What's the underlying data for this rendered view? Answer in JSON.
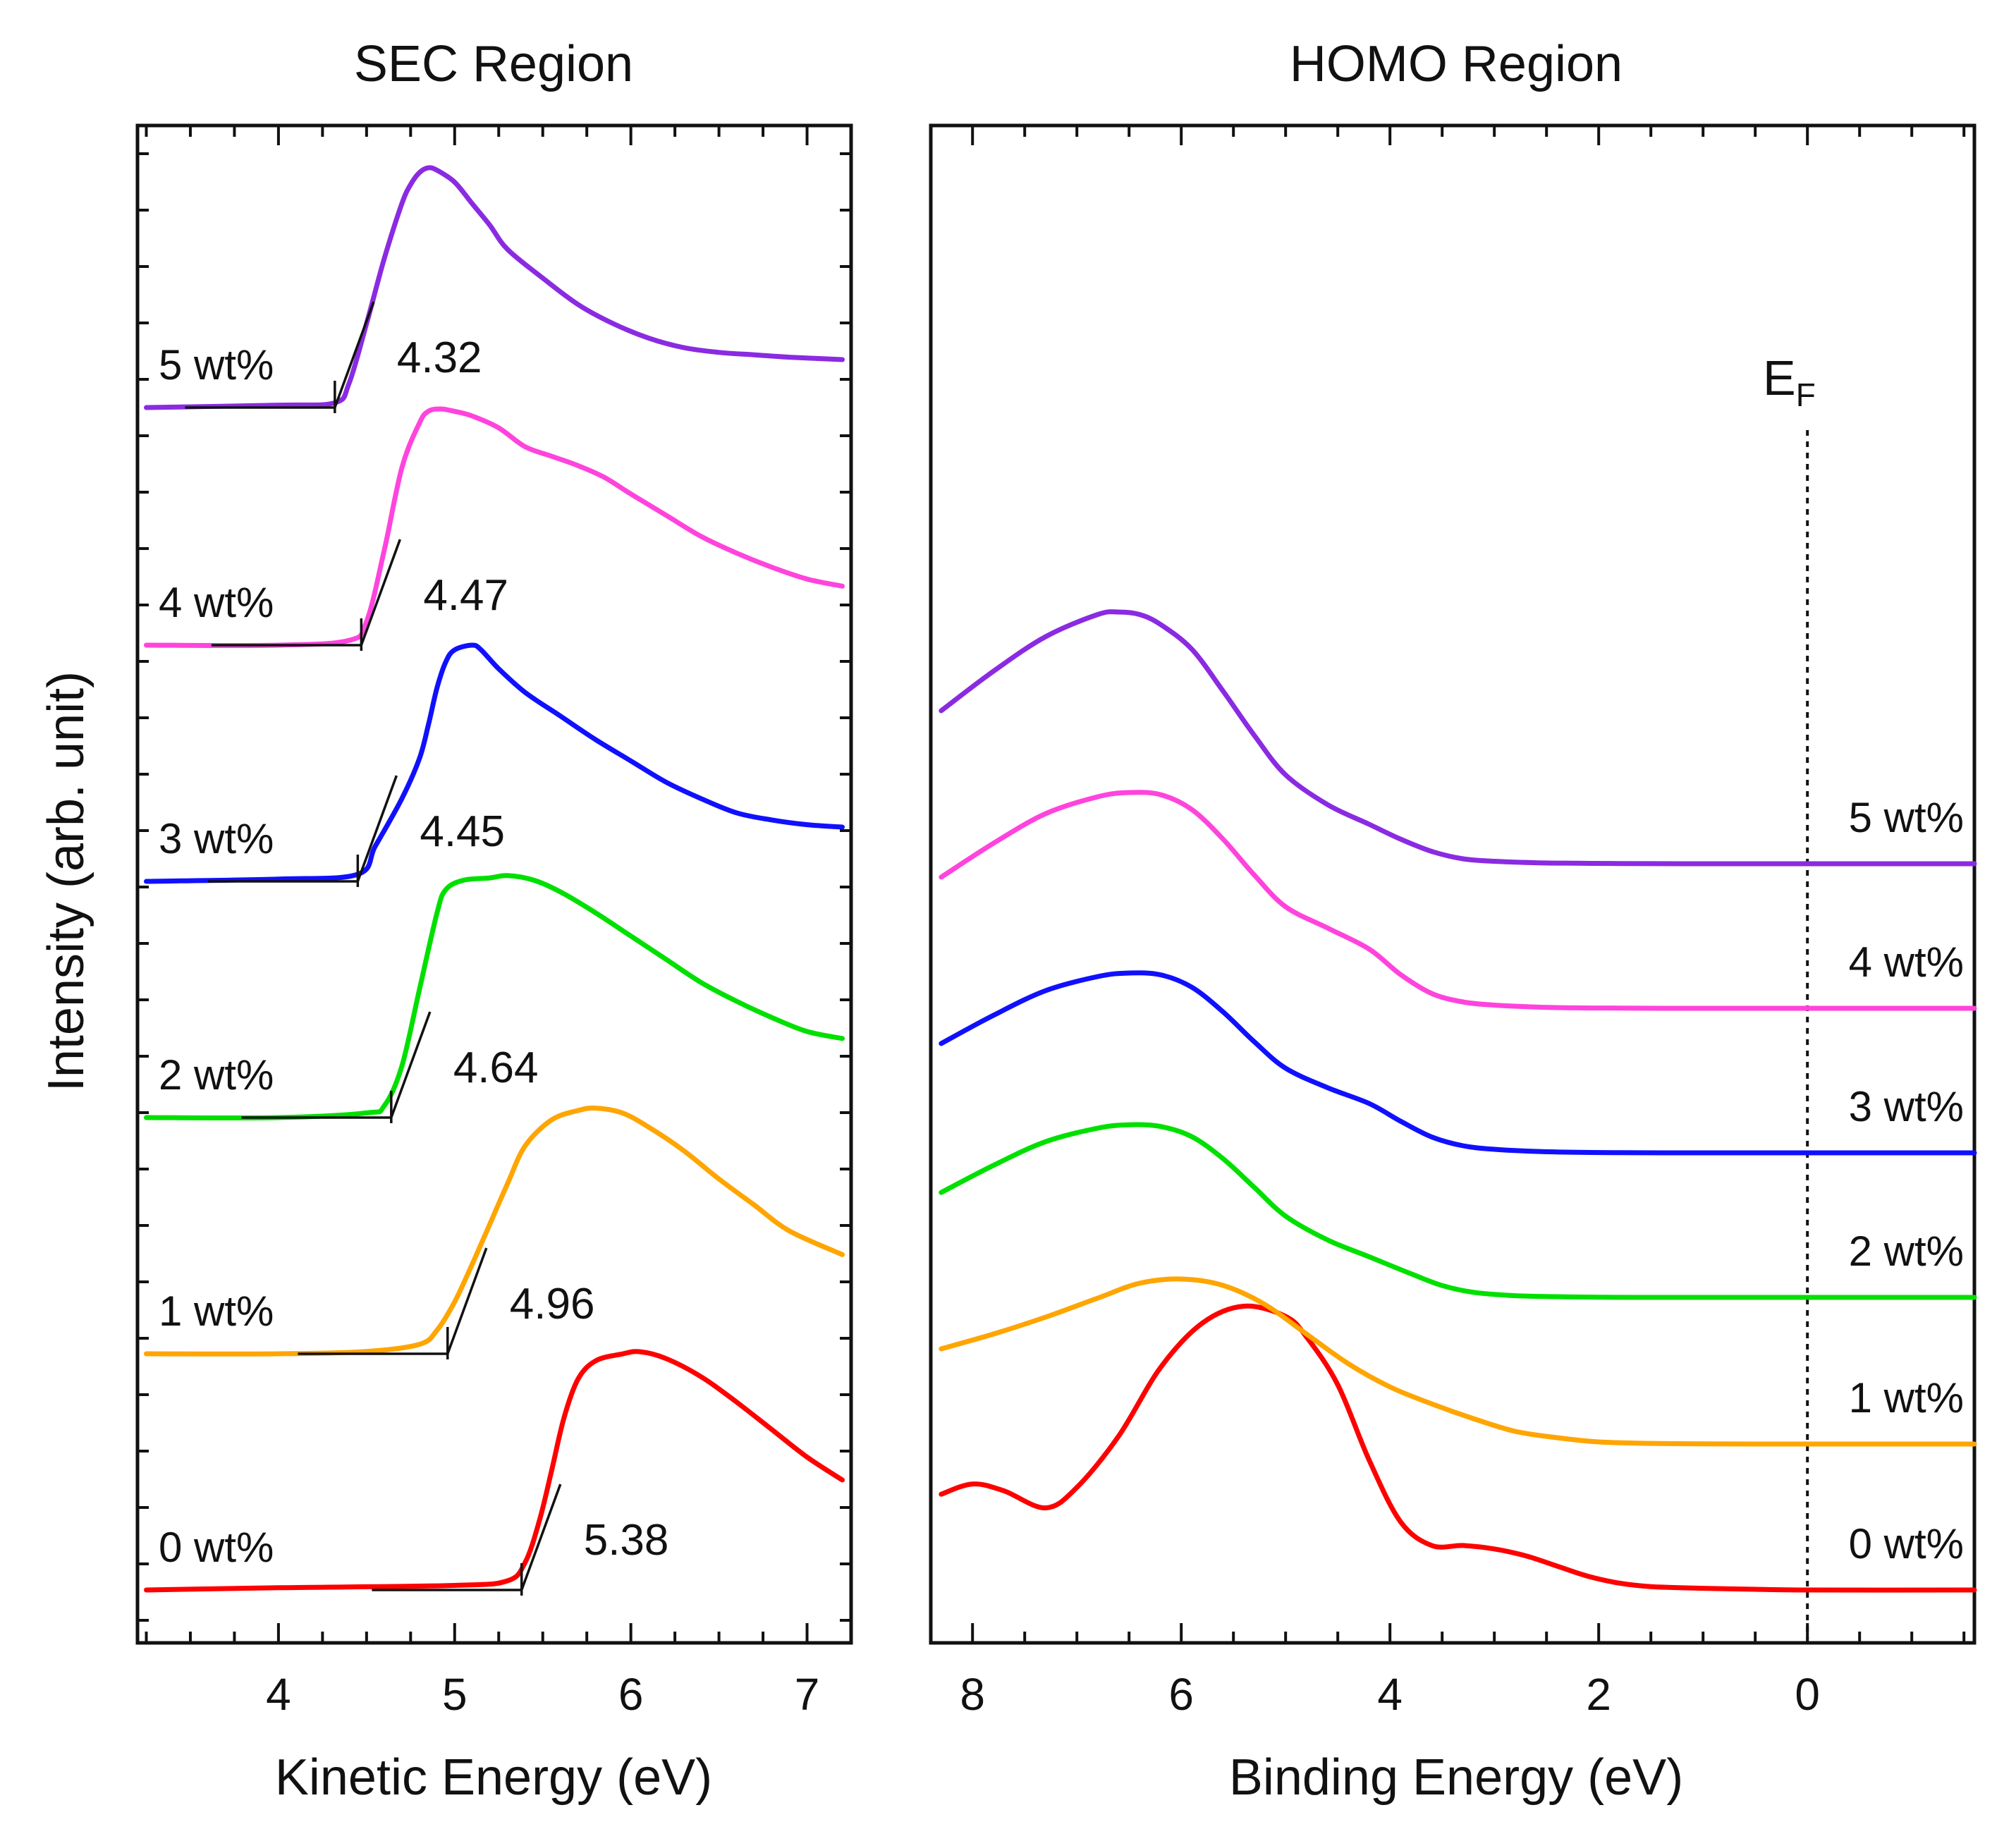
{
  "chart_data": [
    {
      "type": "line",
      "title": "SEC Region",
      "xlabel": "Kinetic Energy (eV)",
      "ylabel": "Intensity (arb. unit)",
      "xlim": [
        3.2,
        7.25
      ],
      "xticks": [
        "4",
        "5",
        "6",
        "7"
      ],
      "grid": false,
      "series": [
        {
          "name": "0 wt%",
          "color": "#ff0000",
          "onset": "5.38",
          "x": [
            3.25,
            4.0,
            5.0,
            5.3,
            5.4,
            5.48,
            5.55,
            5.62,
            5.7,
            5.8,
            5.95,
            6.05,
            6.2,
            6.4,
            6.6,
            6.8,
            7.0,
            7.2
          ],
          "y": [
            0.0,
            0.01,
            0.02,
            0.04,
            0.12,
            0.3,
            0.52,
            0.75,
            0.92,
            1.0,
            1.03,
            1.04,
            1.01,
            0.93,
            0.82,
            0.7,
            0.58,
            0.48
          ]
        },
        {
          "name": "1 wt%",
          "color": "#ffa500",
          "onset": "4.96",
          "x": [
            3.25,
            4.0,
            4.5,
            4.8,
            4.9,
            5.0,
            5.1,
            5.2,
            5.3,
            5.4,
            5.55,
            5.7,
            5.8,
            5.95,
            6.1,
            6.3,
            6.5,
            6.7,
            6.9,
            7.2
          ],
          "y": [
            0.0,
            0.0,
            0.01,
            0.04,
            0.1,
            0.22,
            0.38,
            0.55,
            0.72,
            0.88,
            0.99,
            1.03,
            1.04,
            1.02,
            0.96,
            0.86,
            0.74,
            0.63,
            0.52,
            0.42
          ]
        },
        {
          "name": "2 wt%",
          "color": "#00e000",
          "onset": "4.64",
          "x": [
            3.25,
            4.0,
            4.5,
            4.6,
            4.7,
            4.8,
            4.9,
            4.95,
            5.05,
            5.2,
            5.3,
            5.45,
            5.6,
            5.8,
            6.0,
            6.2,
            6.4,
            6.6,
            6.8,
            7.0,
            7.2
          ],
          "y": [
            0.0,
            0.0,
            0.02,
            0.05,
            0.22,
            0.55,
            0.88,
            0.98,
            1.02,
            1.03,
            1.04,
            1.02,
            0.97,
            0.88,
            0.78,
            0.68,
            0.58,
            0.5,
            0.43,
            0.37,
            0.34
          ]
        },
        {
          "name": "3 wt%",
          "color": "#1010ff",
          "onset": "4.45",
          "x": [
            3.25,
            4.0,
            4.45,
            4.55,
            4.7,
            4.8,
            4.85,
            4.9,
            4.95,
            5.0,
            5.1,
            5.15,
            5.25,
            5.4,
            5.6,
            5.8,
            6.0,
            6.2,
            6.4,
            6.6,
            6.8,
            7.0,
            7.2
          ],
          "y": [
            0.0,
            0.01,
            0.03,
            0.15,
            0.35,
            0.52,
            0.66,
            0.82,
            0.93,
            0.98,
            1.0,
            0.98,
            0.9,
            0.8,
            0.7,
            0.6,
            0.51,
            0.42,
            0.35,
            0.29,
            0.26,
            0.24,
            0.23
          ]
        },
        {
          "name": "4 wt%",
          "color": "#ff44dd",
          "onset": "4.47",
          "x": [
            3.25,
            4.0,
            4.4,
            4.5,
            4.6,
            4.7,
            4.8,
            4.85,
            4.92,
            5.0,
            5.1,
            5.25,
            5.4,
            5.55,
            5.7,
            5.85,
            6.0,
            6.2,
            6.4,
            6.6,
            6.8,
            7.0,
            7.2
          ],
          "y": [
            0.0,
            0.0,
            0.02,
            0.1,
            0.4,
            0.75,
            0.94,
            0.99,
            1.0,
            0.99,
            0.97,
            0.92,
            0.84,
            0.8,
            0.76,
            0.71,
            0.64,
            0.55,
            0.46,
            0.39,
            0.33,
            0.28,
            0.25
          ]
        },
        {
          "name": "5 wt%",
          "color": "#8a2be2",
          "onset": "4.32",
          "x": [
            3.25,
            4.0,
            4.32,
            4.4,
            4.5,
            4.6,
            4.7,
            4.75,
            4.8,
            4.85,
            4.9,
            5.0,
            5.1,
            5.2,
            5.3,
            5.5,
            5.7,
            5.9,
            6.1,
            6.3,
            6.5,
            6.7,
            6.9,
            7.2
          ],
          "y": [
            0.0,
            0.01,
            0.02,
            0.1,
            0.35,
            0.62,
            0.85,
            0.93,
            0.98,
            1.0,
            0.99,
            0.94,
            0.85,
            0.76,
            0.66,
            0.54,
            0.43,
            0.35,
            0.29,
            0.25,
            0.23,
            0.22,
            0.21,
            0.2
          ]
        }
      ]
    },
    {
      "type": "line",
      "title": "HOMO Region",
      "xlabel": "Binding Energy (eV)",
      "xlim": [
        8.4,
        -1.6
      ],
      "xticks": [
        "8",
        "6",
        "4",
        "2",
        "0"
      ],
      "annotation": "E",
      "annotation_sub": "F",
      "grid": false,
      "series": [
        {
          "name": "0 wt%",
          "color": "#ff0000",
          "x": [
            8.3,
            8.0,
            7.7,
            7.3,
            7.0,
            6.6,
            6.2,
            5.8,
            5.4,
            5.0,
            4.8,
            4.5,
            4.2,
            3.9,
            3.6,
            3.3,
            3.0,
            2.7,
            2.4,
            2.1,
            1.8,
            1.5,
            1.0,
            0.5,
            0.0,
            -1.6
          ],
          "y": [
            0.28,
            0.31,
            0.29,
            0.24,
            0.3,
            0.45,
            0.65,
            0.78,
            0.83,
            0.8,
            0.74,
            0.6,
            0.38,
            0.2,
            0.13,
            0.13,
            0.12,
            0.1,
            0.07,
            0.04,
            0.02,
            0.01,
            0.005,
            0.002,
            0.0,
            0.0
          ],
          "offset": 0.0
        },
        {
          "name": "1 wt%",
          "color": "#ffa500",
          "x": [
            8.3,
            7.8,
            7.3,
            6.8,
            6.4,
            6.0,
            5.6,
            5.2,
            4.8,
            4.4,
            4.0,
            3.6,
            3.2,
            2.8,
            2.4,
            2.0,
            1.5,
            1.0,
            0.5,
            0.0,
            -1.6
          ],
          "y": [
            0.45,
            0.52,
            0.6,
            0.69,
            0.76,
            0.78,
            0.75,
            0.66,
            0.52,
            0.38,
            0.27,
            0.19,
            0.12,
            0.06,
            0.03,
            0.01,
            0.003,
            0.001,
            0.0,
            0.0,
            0.0
          ],
          "offset": 0.0
        },
        {
          "name": "2 wt%",
          "color": "#00e000",
          "x": [
            8.3,
            7.8,
            7.3,
            6.8,
            6.5,
            6.2,
            5.9,
            5.6,
            5.3,
            5.0,
            4.6,
            4.2,
            3.8,
            3.5,
            3.2,
            2.8,
            2.4,
            2.0,
            1.5,
            1.0,
            0.5,
            0.0,
            -1.6
          ],
          "y": [
            0.62,
            0.78,
            0.92,
            1.0,
            1.02,
            1.01,
            0.95,
            0.82,
            0.65,
            0.48,
            0.34,
            0.24,
            0.14,
            0.07,
            0.03,
            0.01,
            0.004,
            0.001,
            0.0,
            0.0,
            0.0,
            0.0,
            0.0
          ],
          "offset": 0.0
        },
        {
          "name": "3 wt%",
          "color": "#1010ff",
          "x": [
            8.3,
            7.8,
            7.3,
            6.8,
            6.5,
            6.2,
            5.9,
            5.6,
            5.3,
            5.0,
            4.6,
            4.2,
            3.9,
            3.6,
            3.3,
            3.0,
            2.6,
            2.2,
            1.8,
            1.2,
            0.6,
            0.0,
            -1.6
          ],
          "y": [
            0.62,
            0.78,
            0.92,
            1.0,
            1.02,
            1.01,
            0.94,
            0.8,
            0.63,
            0.48,
            0.37,
            0.28,
            0.18,
            0.09,
            0.04,
            0.02,
            0.008,
            0.003,
            0.001,
            0.0,
            0.0,
            0.0,
            0.0
          ],
          "offset": 0.0
        },
        {
          "name": "4 wt%",
          "color": "#ff44dd",
          "x": [
            8.3,
            7.8,
            7.3,
            6.8,
            6.5,
            6.2,
            5.9,
            5.6,
            5.3,
            5.0,
            4.6,
            4.2,
            3.9,
            3.6,
            3.3,
            3.0,
            2.6,
            2.2,
            1.8,
            1.2,
            0.6,
            0.0,
            -1.6
          ],
          "y": [
            0.62,
            0.78,
            0.92,
            1.0,
            1.02,
            1.01,
            0.94,
            0.8,
            0.63,
            0.48,
            0.38,
            0.28,
            0.16,
            0.07,
            0.03,
            0.015,
            0.006,
            0.002,
            0.001,
            0.0,
            0.0,
            0.0,
            0.0
          ],
          "offset": 0.0
        },
        {
          "name": "5 wt%",
          "color": "#8a2be2",
          "x": [
            8.3,
            7.8,
            7.3,
            6.8,
            6.6,
            6.4,
            6.2,
            5.9,
            5.6,
            5.3,
            5.0,
            4.6,
            4.2,
            3.9,
            3.6,
            3.3,
            3.0,
            2.6,
            2.2,
            1.8,
            1.2,
            0.6,
            0.0,
            -1.6
          ],
          "y": [
            0.62,
            0.78,
            0.92,
            1.01,
            1.02,
            1.01,
            0.97,
            0.87,
            0.7,
            0.52,
            0.36,
            0.24,
            0.16,
            0.1,
            0.05,
            0.02,
            0.01,
            0.004,
            0.002,
            0.001,
            0.0,
            0.0,
            0.0,
            0.0
          ],
          "offset": 0.0
        }
      ]
    }
  ]
}
